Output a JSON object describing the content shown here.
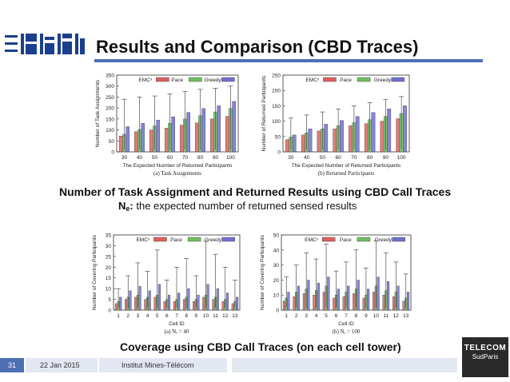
{
  "slide": {
    "title": "Results and Comparison (CBD Traces)",
    "caption1": "Number of Task Assignment and Returned Results using CBD Call Traces",
    "note_label": "N",
    "note_sub": "e",
    "note_colon": ":",
    "note_text": " the expected number of returned sensed results",
    "caption2": "Coverage using CBD Call Traces (on each cell tower)",
    "footer": {
      "page": "31",
      "date": "22 Jan 2015",
      "institute": "Institut Mines-Télécom"
    },
    "telecom_logo": {
      "line1": "TELECOM",
      "line2": "SudParis"
    }
  },
  "colors": {
    "emc": "#e06060",
    "pace": "#70c060",
    "greedy": "#7070d0",
    "accent": "#4f6fb3"
  },
  "chart_data": [
    {
      "type": "bar",
      "id": "a",
      "caption": "(a) Task Assignments",
      "categories": [
        "30",
        "40",
        "50",
        "60",
        "70",
        "80",
        "90",
        "100"
      ],
      "series": [
        {
          "name": "EMC³",
          "values": [
            72,
            92,
            100,
            108,
            122,
            132,
            150,
            162
          ]
        },
        {
          "name": "Pace",
          "values": [
            80,
            102,
            118,
            130,
            150,
            165,
            182,
            198
          ]
        },
        {
          "name": "Greedy",
          "values": [
            115,
            130,
            145,
            160,
            180,
            198,
            210,
            230
          ]
        }
      ],
      "error_top": [
        240,
        250,
        255,
        265,
        275,
        285,
        290,
        300
      ],
      "xlabel": "The Expected Number of Returned Participants",
      "ylabel": "Number of Task Assignments",
      "ylim": [
        0,
        350
      ],
      "yticks": [
        0,
        50,
        100,
        150,
        200,
        250,
        300,
        350
      ]
    },
    {
      "type": "bar",
      "id": "b",
      "caption": "(b) Returned Participants",
      "categories": [
        "30",
        "40",
        "50",
        "60",
        "70",
        "80",
        "90",
        "100"
      ],
      "series": [
        {
          "name": "EMC³",
          "values": [
            40,
            55,
            68,
            75,
            85,
            92,
            100,
            108
          ]
        },
        {
          "name": "Pace",
          "values": [
            48,
            62,
            75,
            85,
            95,
            105,
            115,
            125
          ]
        },
        {
          "name": "Greedy",
          "values": [
            55,
            75,
            90,
            102,
            115,
            128,
            140,
            150
          ]
        }
      ],
      "error_top": [
        110,
        120,
        130,
        140,
        150,
        160,
        170,
        180
      ],
      "xlabel": "The Expected Number of Returned Participants",
      "ylabel": "Number of Returned Participants",
      "ylim": [
        0,
        250
      ],
      "yticks": [
        0,
        50,
        100,
        150,
        200,
        250
      ]
    },
    {
      "type": "bar",
      "id": "c",
      "caption": "(a) Nₑ = 40",
      "categories": [
        "1",
        "2",
        "3",
        "4",
        "5",
        "6",
        "7",
        "8",
        "9",
        "10",
        "11",
        "12",
        "13"
      ],
      "series": [
        {
          "name": "EMC³",
          "values": [
            3,
            5,
            6,
            5,
            6,
            4,
            4,
            5,
            4,
            6,
            5,
            4,
            3
          ]
        },
        {
          "name": "Pace",
          "values": [
            4,
            6,
            7,
            6,
            7,
            5,
            5,
            6,
            5,
            7,
            6,
            5,
            4
          ]
        },
        {
          "name": "Greedy",
          "values": [
            6,
            9,
            11,
            9,
            12,
            7,
            8,
            10,
            7,
            12,
            10,
            8,
            6
          ]
        }
      ],
      "error_top": [
        10,
        16,
        22,
        18,
        28,
        14,
        20,
        24,
        16,
        32,
        26,
        20,
        14
      ],
      "xlabel": "Cell ID",
      "ylabel": "Number of Covering Participants",
      "ylim": [
        0,
        35
      ],
      "yticks": [
        0,
        5,
        10,
        15,
        20,
        25,
        30,
        35
      ]
    },
    {
      "type": "bar",
      "id": "d",
      "caption": "(b) Nₑ = 100",
      "categories": [
        "1",
        "2",
        "3",
        "4",
        "5",
        "6",
        "7",
        "8",
        "9",
        "10",
        "11",
        "12",
        "13"
      ],
      "series": [
        {
          "name": "EMC³",
          "values": [
            6,
            9,
            11,
            10,
            12,
            8,
            9,
            11,
            8,
            12,
            10,
            9,
            6
          ]
        },
        {
          "name": "Pace",
          "values": [
            8,
            12,
            14,
            13,
            16,
            10,
            12,
            14,
            10,
            16,
            13,
            12,
            8
          ]
        },
        {
          "name": "Greedy",
          "values": [
            12,
            16,
            20,
            18,
            22,
            14,
            16,
            20,
            14,
            22,
            19,
            16,
            12
          ]
        }
      ],
      "error_top": [
        22,
        30,
        38,
        34,
        44,
        26,
        32,
        40,
        28,
        46,
        38,
        32,
        24
      ],
      "xlabel": "Cell ID",
      "ylabel": "Number of Covering Participants",
      "ylim": [
        0,
        50
      ],
      "yticks": [
        0,
        10,
        20,
        30,
        40,
        50
      ]
    }
  ]
}
